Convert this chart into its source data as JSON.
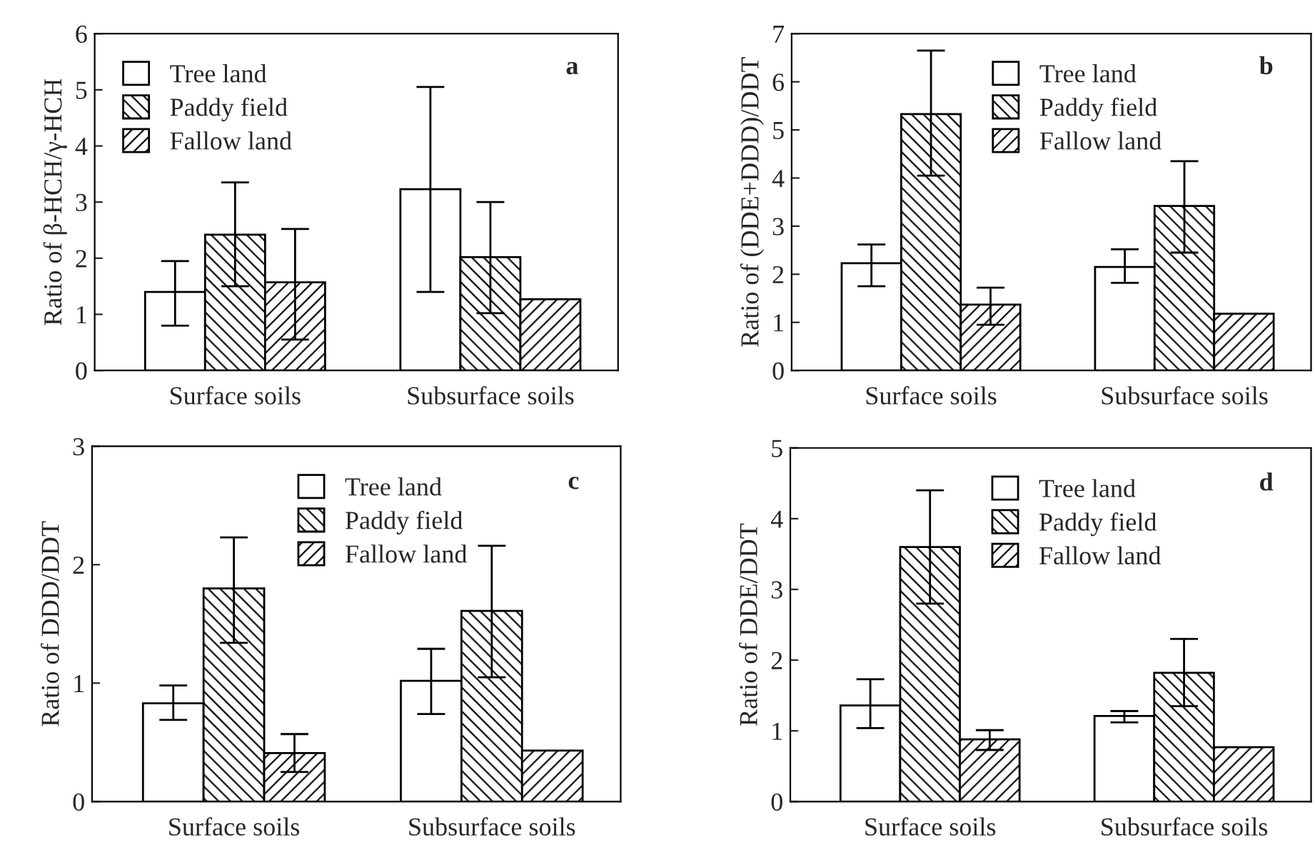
{
  "chart_data": [
    {
      "type": "bar",
      "ylabel": "Ratio of β-HCH/γ-HCH",
      "categories": [
        "Surface soils",
        "Subsurface soils"
      ],
      "ylim": [
        0,
        6
      ],
      "yticks": [
        0,
        1,
        2,
        3,
        4,
        5,
        6
      ],
      "legend": "top left",
      "annotations": [
        "a"
      ],
      "series": [
        {
          "name": "Tree land",
          "color": "#ffffff",
          "values": [
            1.4,
            3.23
          ],
          "errors": [
            [
              0.8,
              1.95
            ],
            [
              1.4,
              5.05
            ]
          ]
        },
        {
          "name": "Paddy field",
          "color": "#000000",
          "values": [
            2.42,
            2.02
          ],
          "errors": [
            [
              1.5,
              3.35
            ],
            [
              1.02,
              3.0
            ]
          ]
        },
        {
          "name": "Fallow land",
          "color": "#000000",
          "values": [
            1.57,
            1.27
          ],
          "errors": [
            [
              0.55,
              2.52
            ],
            null
          ]
        }
      ]
    },
    {
      "type": "bar",
      "ylabel": "Ratio of (DDE+DDD)/DDT",
      "categories": [
        "Surface soils",
        "Subsurface soils"
      ],
      "ylim": [
        0,
        7
      ],
      "yticks": [
        0,
        1,
        2,
        3,
        4,
        5,
        6,
        7
      ],
      "legend": "top",
      "annotations": [
        "b"
      ],
      "series": [
        {
          "name": "Tree land",
          "color": "#ffffff",
          "values": [
            2.23,
            2.15
          ],
          "errors": [
            [
              1.75,
              2.62
            ],
            [
              1.82,
              2.52
            ]
          ]
        },
        {
          "name": "Paddy field",
          "color": "#000000",
          "values": [
            5.33,
            3.42
          ],
          "errors": [
            [
              4.05,
              6.65
            ],
            [
              2.45,
              4.35
            ]
          ]
        },
        {
          "name": "Fallow land",
          "color": "#000000",
          "values": [
            1.37,
            1.18
          ],
          "errors": [
            [
              0.95,
              1.72
            ],
            null
          ]
        }
      ]
    },
    {
      "type": "bar",
      "ylabel": "Ratio of DDD/DDT",
      "categories": [
        "Surface soils",
        "Subsurface soils"
      ],
      "ylim": [
        0,
        3
      ],
      "yticks": [
        0,
        1,
        2,
        3
      ],
      "legend": "top",
      "annotations": [
        "c"
      ],
      "series": [
        {
          "name": "Tree land",
          "color": "#ffffff",
          "values": [
            0.83,
            1.02
          ],
          "errors": [
            [
              0.69,
              0.98
            ],
            [
              0.74,
              1.29
            ]
          ]
        },
        {
          "name": "Paddy field",
          "color": "#000000",
          "values": [
            1.8,
            1.61
          ],
          "errors": [
            [
              1.34,
              2.23
            ],
            [
              1.05,
              2.16
            ]
          ]
        },
        {
          "name": "Fallow land",
          "color": "#000000",
          "values": [
            0.41,
            0.43
          ],
          "errors": [
            [
              0.25,
              0.57
            ],
            null
          ]
        }
      ]
    },
    {
      "type": "bar",
      "ylabel": "Ratio of DDE/DDT",
      "categories": [
        "Surface soils",
        "Subsurface soils"
      ],
      "ylim": [
        0,
        5
      ],
      "yticks": [
        0,
        1,
        2,
        3,
        4,
        5
      ],
      "legend": "top",
      "annotations": [
        "d"
      ],
      "series": [
        {
          "name": "Tree land",
          "color": "#ffffff",
          "values": [
            1.36,
            1.21
          ],
          "errors": [
            [
              1.04,
              1.73
            ],
            [
              1.12,
              1.28
            ]
          ]
        },
        {
          "name": "Paddy field",
          "color": "#000000",
          "values": [
            3.6,
            1.82
          ],
          "errors": [
            [
              2.8,
              4.4
            ],
            [
              1.35,
              2.3
            ]
          ]
        },
        {
          "name": "Fallow land",
          "color": "#000000",
          "values": [
            0.88,
            0.77
          ],
          "errors": [
            [
              0.73,
              1.01
            ],
            null
          ]
        }
      ]
    }
  ]
}
